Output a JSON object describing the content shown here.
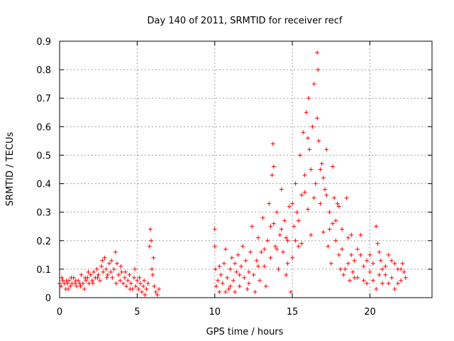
{
  "chart_data": {
    "type": "scatter",
    "title": "Day 140 of 2011, SRMTID for receiver recf",
    "xlabel": "GPS time / hours",
    "ylabel": "SRMTID / TECUs",
    "xlim": [
      0,
      24
    ],
    "ylim": [
      0,
      0.9
    ],
    "x_ticks": [
      0,
      5,
      10,
      15,
      20
    ],
    "x_tick_labels": [
      "0",
      "5",
      "10",
      "15",
      "20"
    ],
    "y_ticks": [
      0,
      0.1,
      0.2,
      0.3,
      0.4,
      0.5,
      0.6,
      0.7,
      0.8,
      0.9
    ],
    "y_tick_labels": [
      "0",
      "0.1",
      "0.2",
      "0.3",
      "0.4",
      "0.5",
      "0.6",
      "0.7",
      "0.8",
      "0.9"
    ],
    "grid": true,
    "marker": "plus",
    "color": "#ff0000",
    "series": [
      {
        "name": "SRMTID",
        "points": [
          [
            0.0,
            0.05
          ],
          [
            0.1,
            0.04
          ],
          [
            0.2,
            0.06
          ],
          [
            0.3,
            0.05
          ],
          [
            0.4,
            0.03
          ],
          [
            0.5,
            0.05
          ],
          [
            0.6,
            0.06
          ],
          [
            0.7,
            0.04
          ],
          [
            0.8,
            0.05
          ],
          [
            0.9,
            0.07
          ],
          [
            1.0,
            0.05
          ],
          [
            1.1,
            0.04
          ],
          [
            1.2,
            0.06
          ],
          [
            1.3,
            0.05
          ],
          [
            1.4,
            0.08
          ],
          [
            1.5,
            0.05
          ],
          [
            1.6,
            0.03
          ],
          [
            1.7,
            0.06
          ],
          [
            1.8,
            0.07
          ],
          [
            1.9,
            0.05
          ],
          [
            2.0,
            0.08
          ],
          [
            2.1,
            0.06
          ],
          [
            2.2,
            0.09
          ],
          [
            2.3,
            0.07
          ],
          [
            2.4,
            0.1
          ],
          [
            2.5,
            0.08
          ],
          [
            2.6,
            0.06
          ],
          [
            2.7,
            0.11
          ],
          [
            2.8,
            0.09
          ],
          [
            2.9,
            0.14
          ],
          [
            3.0,
            0.1
          ],
          [
            3.1,
            0.08
          ],
          [
            3.2,
            0.12
          ],
          [
            3.3,
            0.09
          ],
          [
            3.4,
            0.07
          ],
          [
            3.5,
            0.1
          ],
          [
            3.6,
            0.16
          ],
          [
            3.7,
            0.12
          ],
          [
            3.8,
            0.08
          ],
          [
            3.9,
            0.06
          ],
          [
            4.0,
            0.09
          ],
          [
            4.1,
            0.05
          ],
          [
            4.2,
            0.07
          ],
          [
            4.3,
            0.04
          ],
          [
            4.4,
            0.06
          ],
          [
            4.5,
            0.08
          ],
          [
            4.6,
            0.05
          ],
          [
            4.7,
            0.03
          ],
          [
            4.8,
            0.07
          ],
          [
            4.9,
            0.04
          ],
          [
            5.0,
            0.06
          ],
          [
            5.1,
            0.03
          ],
          [
            5.2,
            0.05
          ],
          [
            5.3,
            0.02
          ],
          [
            5.4,
            0.04
          ],
          [
            5.5,
            0.01
          ],
          [
            5.6,
            0.03
          ],
          [
            5.7,
            0.05
          ],
          [
            5.8,
            0.18
          ],
          [
            5.85,
            0.24
          ],
          [
            5.9,
            0.2
          ],
          [
            5.95,
            0.1
          ],
          [
            6.0,
            0.08
          ],
          [
            6.05,
            0.14
          ],
          [
            6.1,
            0.04
          ],
          [
            6.2,
            0.02
          ],
          [
            6.3,
            0.01
          ],
          [
            6.4,
            0.03
          ],
          [
            0.15,
            0.07
          ],
          [
            0.45,
            0.06
          ],
          [
            0.75,
            0.07
          ],
          [
            1.05,
            0.06
          ],
          [
            1.35,
            0.04
          ],
          [
            1.65,
            0.07
          ],
          [
            2.15,
            0.05
          ],
          [
            2.45,
            0.07
          ],
          [
            2.75,
            0.13
          ],
          [
            3.05,
            0.07
          ],
          [
            3.35,
            0.13
          ],
          [
            3.65,
            0.05
          ],
          [
            3.95,
            0.11
          ],
          [
            4.25,
            0.09
          ],
          [
            4.55,
            0.03
          ],
          [
            4.85,
            0.1
          ],
          [
            5.15,
            0.07
          ],
          [
            5.45,
            0.06
          ],
          [
            0.55,
            0.03
          ],
          [
            1.85,
            0.09
          ],
          [
            10.0,
            0.24
          ],
          [
            10.0,
            0.18
          ],
          [
            10.05,
            0.1
          ],
          [
            10.1,
            0.04
          ],
          [
            10.2,
            0.06
          ],
          [
            10.3,
            0.02
          ],
          [
            10.4,
            0.08
          ],
          [
            10.5,
            0.05
          ],
          [
            10.6,
            0.12
          ],
          [
            10.7,
            0.17
          ],
          [
            10.8,
            0.07
          ],
          [
            10.9,
            0.03
          ],
          [
            11.0,
            0.1
          ],
          [
            11.1,
            0.14
          ],
          [
            11.2,
            0.06
          ],
          [
            11.3,
            0.02
          ],
          [
            11.4,
            0.09
          ],
          [
            11.5,
            0.15
          ],
          [
            11.6,
            0.04
          ],
          [
            11.7,
            0.11
          ],
          [
            11.8,
            0.18
          ],
          [
            11.9,
            0.07
          ],
          [
            12.0,
            0.13
          ],
          [
            12.1,
            0.03
          ],
          [
            12.2,
            0.09
          ],
          [
            12.3,
            0.16
          ],
          [
            12.4,
            0.25
          ],
          [
            12.5,
            0.08
          ],
          [
            12.6,
            0.02
          ],
          [
            12.7,
            0.13
          ],
          [
            12.8,
            0.21
          ],
          [
            12.9,
            0.06
          ],
          [
            13.0,
            0.16
          ],
          [
            13.1,
            0.28
          ],
          [
            13.2,
            0.11
          ],
          [
            13.3,
            0.04
          ],
          [
            13.4,
            0.2
          ],
          [
            13.5,
            0.33
          ],
          [
            13.6,
            0.14
          ],
          [
            13.7,
            0.43
          ],
          [
            13.75,
            0.54
          ],
          [
            13.8,
            0.26
          ],
          [
            13.9,
            0.18
          ],
          [
            14.0,
            0.3
          ],
          [
            14.1,
            0.1
          ],
          [
            14.2,
            0.22
          ],
          [
            14.3,
            0.38
          ],
          [
            14.4,
            0.16
          ],
          [
            14.5,
            0.27
          ],
          [
            14.6,
            0.08
          ],
          [
            14.7,
            0.2
          ],
          [
            14.8,
            0.32
          ],
          [
            14.9,
            0.02
          ],
          [
            15.0,
            0.14
          ],
          [
            15.1,
            0.25
          ],
          [
            15.2,
            0.4
          ],
          [
            15.3,
            0.3
          ],
          [
            15.4,
            0.18
          ],
          [
            15.5,
            0.5
          ],
          [
            15.6,
            0.36
          ],
          [
            15.7,
            0.58
          ],
          [
            15.8,
            0.43
          ],
          [
            15.9,
            0.65
          ],
          [
            16.0,
            0.31
          ],
          [
            16.05,
            0.7
          ],
          [
            16.1,
            0.52
          ],
          [
            16.2,
            0.22
          ],
          [
            16.3,
            0.6
          ],
          [
            16.4,
            0.75
          ],
          [
            16.5,
            0.4
          ],
          [
            16.6,
            0.86
          ],
          [
            16.65,
            0.8
          ],
          [
            16.7,
            0.55
          ],
          [
            16.8,
            0.33
          ],
          [
            16.9,
            0.47
          ],
          [
            17.0,
            0.23
          ],
          [
            17.1,
            0.38
          ],
          [
            17.2,
            0.52
          ],
          [
            17.3,
            0.18
          ],
          [
            17.4,
            0.3
          ],
          [
            17.5,
            0.12
          ],
          [
            17.6,
            0.26
          ],
          [
            17.7,
            0.35
          ],
          [
            17.8,
            0.2
          ],
          [
            17.9,
            0.33
          ],
          [
            18.0,
            0.15
          ],
          [
            18.1,
            0.1
          ],
          [
            18.2,
            0.24
          ],
          [
            18.3,
            0.08
          ],
          [
            18.5,
            0.35
          ],
          [
            18.6,
            0.12
          ],
          [
            18.7,
            0.06
          ],
          [
            18.8,
            0.15
          ],
          [
            18.9,
            0.09
          ],
          [
            19.0,
            0.13
          ],
          [
            19.2,
            0.07
          ],
          [
            19.4,
            0.22
          ],
          [
            19.6,
            0.11
          ],
          [
            19.8,
            0.05
          ],
          [
            20.0,
            0.09
          ],
          [
            20.2,
            0.12
          ],
          [
            20.4,
            0.25
          ],
          [
            20.5,
            0.19
          ],
          [
            20.6,
            0.08
          ],
          [
            20.7,
            0.13
          ],
          [
            20.8,
            0.05
          ],
          [
            21.0,
            0.11
          ],
          [
            21.2,
            0.15
          ],
          [
            21.4,
            0.07
          ],
          [
            21.6,
            0.03
          ],
          [
            21.8,
            0.1
          ],
          [
            22.0,
            0.06
          ],
          [
            22.1,
            0.12
          ],
          [
            22.2,
            0.09
          ],
          [
            22.3,
            0.07
          ],
          [
            14.0,
            0.17
          ],
          [
            14.6,
            0.21
          ],
          [
            15.0,
            0.33
          ],
          [
            15.4,
            0.27
          ],
          [
            15.8,
            0.37
          ],
          [
            16.2,
            0.45
          ],
          [
            16.6,
            0.63
          ],
          [
            17.0,
            0.42
          ],
          [
            17.4,
            0.24
          ],
          [
            17.8,
            0.27
          ],
          [
            18.2,
            0.17
          ],
          [
            18.6,
            0.21
          ],
          [
            19.0,
            0.07
          ],
          [
            19.4,
            0.15
          ],
          [
            19.8,
            0.13
          ],
          [
            20.2,
            0.06
          ],
          [
            20.6,
            0.16
          ],
          [
            21.0,
            0.08
          ],
          [
            21.4,
            0.13
          ],
          [
            21.8,
            0.05
          ],
          [
            11.0,
            0.04
          ],
          [
            11.6,
            0.08
          ],
          [
            12.2,
            0.05
          ],
          [
            12.8,
            0.11
          ],
          [
            13.2,
            0.17
          ],
          [
            13.6,
            0.25
          ],
          [
            14.3,
            0.24
          ],
          [
            14.7,
            0.12
          ],
          [
            15.2,
            0.2
          ],
          [
            15.6,
            0.19
          ],
          [
            16.0,
            0.56
          ],
          [
            16.4,
            0.35
          ],
          [
            16.8,
            0.45
          ],
          [
            17.2,
            0.36
          ],
          [
            17.6,
            0.46
          ],
          [
            18.0,
            0.32
          ],
          [
            18.4,
            0.1
          ],
          [
            18.8,
            0.22
          ],
          [
            19.2,
            0.17
          ],
          [
            19.6,
            0.06
          ],
          [
            20.0,
            0.15
          ],
          [
            20.4,
            0.03
          ],
          [
            20.8,
            0.1
          ],
          [
            21.2,
            0.05
          ],
          [
            21.6,
            0.12
          ],
          [
            22.0,
            0.1
          ],
          [
            10.3,
            0.11
          ],
          [
            10.7,
            0.02
          ],
          [
            11.3,
            0.12
          ],
          [
            13.8,
            0.46
          ]
        ]
      }
    ]
  }
}
